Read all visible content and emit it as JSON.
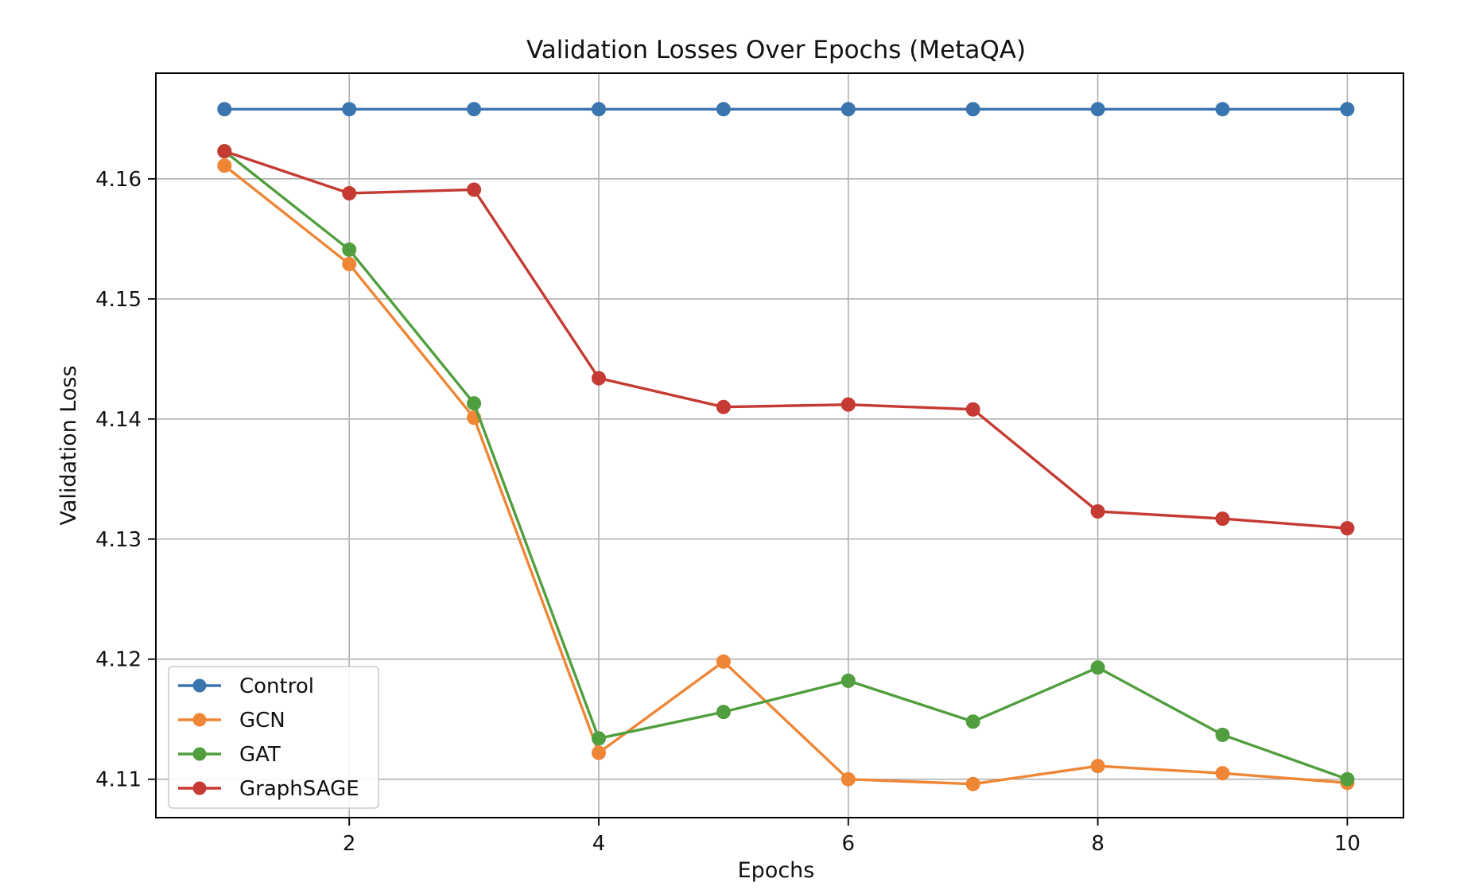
{
  "chart_data": {
    "type": "line",
    "title": "Validation Losses Over Epochs (MetaQA)",
    "xlabel": "Epochs",
    "ylabel": "Validation Loss",
    "x": [
      1,
      2,
      3,
      4,
      5,
      6,
      7,
      8,
      9,
      10
    ],
    "x_ticks": [
      2,
      4,
      6,
      8,
      10
    ],
    "y_ticks": [
      4.11,
      4.12,
      4.13,
      4.14,
      4.15,
      4.16
    ],
    "y_tick_labels": [
      "4.11",
      "4.12",
      "4.13",
      "4.14",
      "4.15",
      "4.16"
    ],
    "xlim": [
      0.45,
      10.45
    ],
    "ylim": [
      4.1068,
      4.1688
    ],
    "grid": true,
    "legend_position": "lower-left",
    "series": [
      {
        "name": "Control",
        "color": "#3b75af",
        "values": [
          4.1658,
          4.1658,
          4.1658,
          4.1658,
          4.1658,
          4.1658,
          4.1658,
          4.1658,
          4.1658,
          4.1658
        ]
      },
      {
        "name": "GCN",
        "color": "#ef8636",
        "values": [
          4.1611,
          4.1529,
          4.1401,
          4.1122,
          4.1198,
          4.11,
          4.1096,
          4.1111,
          4.1105,
          4.1097
        ]
      },
      {
        "name": "GAT",
        "color": "#519e3e",
        "values": [
          4.1623,
          4.1541,
          4.1413,
          4.1134,
          4.1156,
          4.1182,
          4.1148,
          4.1193,
          4.1137,
          4.11
        ]
      },
      {
        "name": "GraphSAGE",
        "color": "#c53a32",
        "values": [
          4.1623,
          4.1588,
          4.1591,
          4.1434,
          4.141,
          4.1412,
          4.1408,
          4.1323,
          4.1317,
          4.1309
        ]
      }
    ]
  }
}
